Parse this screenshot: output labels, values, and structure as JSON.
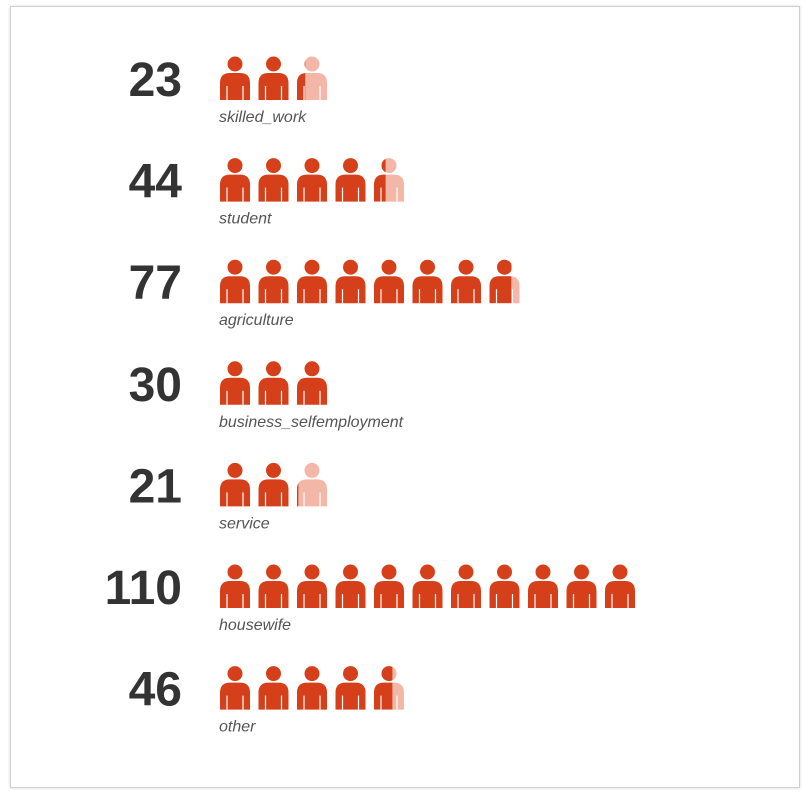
{
  "chart_data": {
    "type": "pictogram",
    "categories": [
      "skilled_work",
      "student",
      "agriculture",
      "business_selfemployment",
      "service",
      "housewife",
      "other"
    ],
    "values": [
      23,
      44,
      77,
      30,
      21,
      110,
      46
    ],
    "icon_value": 10,
    "color": "#d5401b",
    "empty_color": "#f3b7a7"
  }
}
